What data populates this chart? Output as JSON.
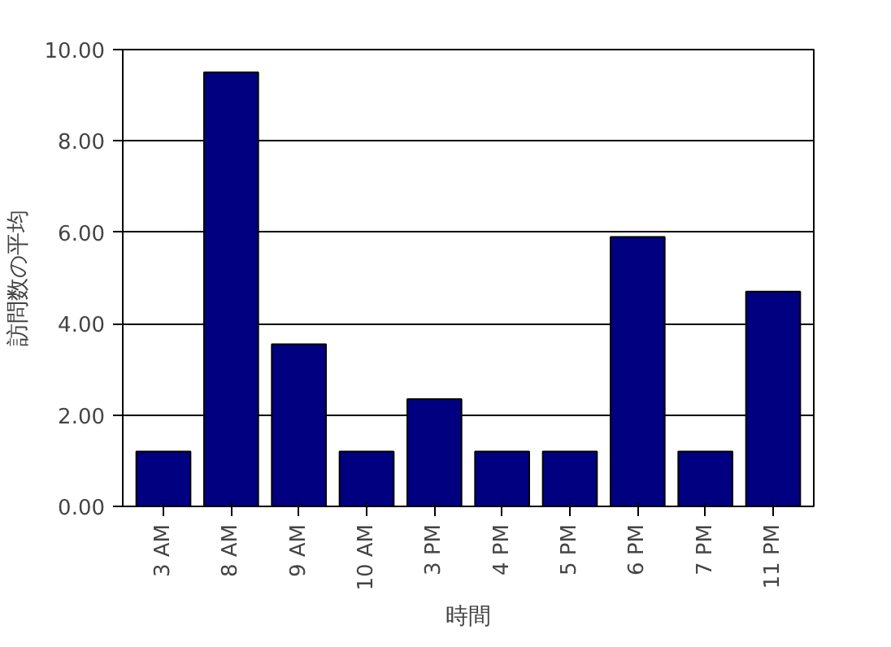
{
  "chart_data": {
    "type": "bar",
    "categories": [
      "3 AM",
      "8 AM",
      "9 AM",
      "10 AM",
      "3 PM",
      "4 PM",
      "5 PM",
      "6 PM",
      "7 PM",
      "11 PM"
    ],
    "values": [
      1.2,
      9.5,
      3.55,
      1.2,
      2.35,
      1.2,
      1.2,
      5.9,
      1.2,
      4.7
    ],
    "color": "#000080",
    "xlabel": "時間",
    "ylabel": "訪問数の平均",
    "ylim": [
      0,
      10
    ],
    "yticks": [
      {
        "value": 0,
        "label": "0.00"
      },
      {
        "value": 2,
        "label": "2.00"
      },
      {
        "value": 4,
        "label": "4.00"
      },
      {
        "value": 6,
        "label": "6.00"
      },
      {
        "value": 8,
        "label": "8.00"
      },
      {
        "value": 10,
        "label": "10.00"
      }
    ],
    "grid": "y"
  }
}
